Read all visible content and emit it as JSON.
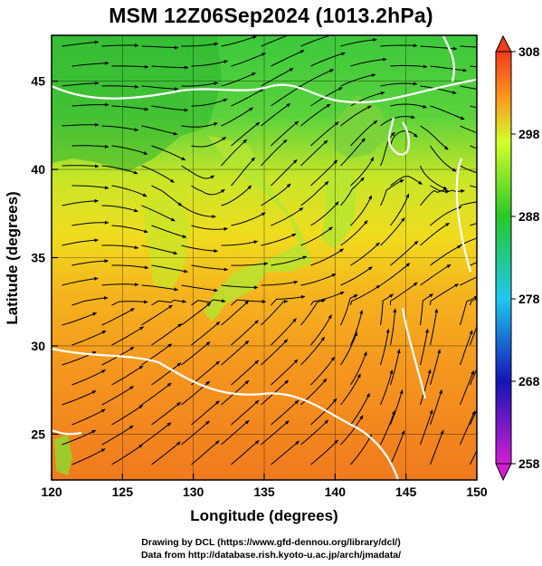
{
  "title": "MSM 12Z06Sep2024 (1013.2hPa)",
  "x_axis": {
    "label": "Longitude (degrees)",
    "ticks": [
      "120",
      "125",
      "130",
      "135",
      "140",
      "145",
      "150"
    ],
    "range": [
      120,
      150
    ]
  },
  "y_axis": {
    "label": "Latitude  (degrees)",
    "ticks": [
      "25",
      "30",
      "35",
      "40",
      "45"
    ],
    "range": [
      22.4,
      47.6
    ]
  },
  "colorbar": {
    "ticks": [
      "308",
      "298",
      "288",
      "278",
      "268",
      "258"
    ],
    "range": [
      258,
      308
    ],
    "colors": [
      "#d21ed2",
      "#1414b4",
      "#1ec8f0",
      "#28c828",
      "#d2ff28",
      "#ff8c1e",
      "#f03c1e"
    ]
  },
  "credits": {
    "line1": "Drawing by DCL (https://www.gfd-dennou.org/library/dcl/)",
    "line2": "Data from http://database.rish.kyoto-u.ac.jp/arch/jmadata/"
  }
}
